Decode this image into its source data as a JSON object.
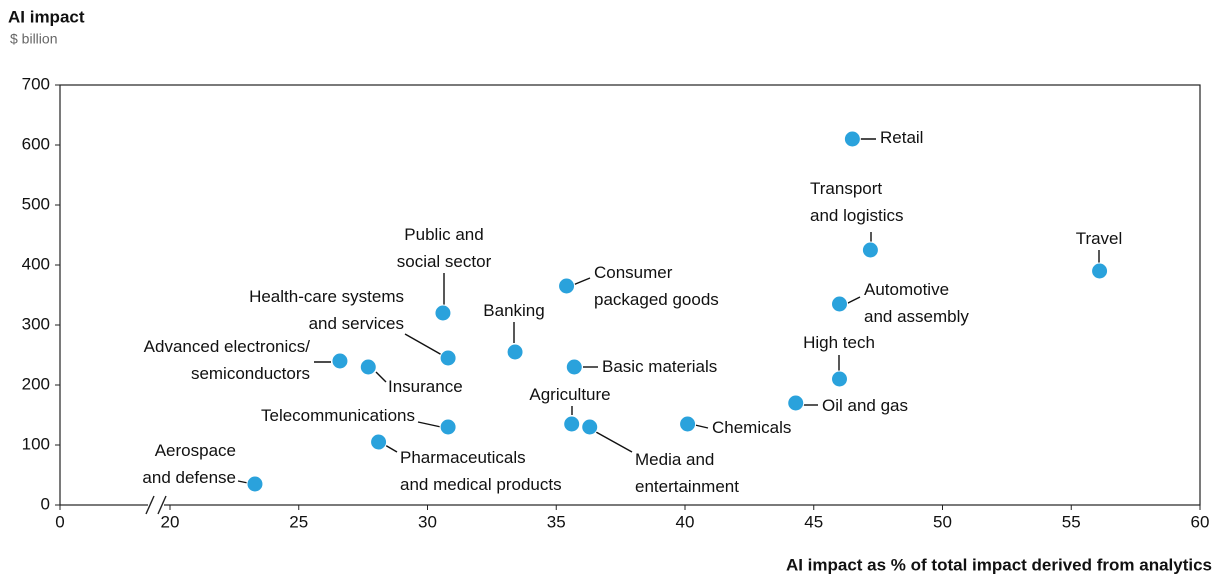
{
  "chart_data": {
    "type": "scatter",
    "title": "AI impact",
    "subtitle": "$ billion",
    "x_label": "AI impact as % of total impact derived from analytics",
    "color": "#2aa2dc",
    "x": [
      46.5,
      47.2,
      56.1,
      46.0,
      46.0,
      44.3,
      40.1,
      35.4,
      35.7,
      33.4,
      35.6,
      36.3,
      30.6,
      30.8,
      30.8,
      26.6,
      27.7,
      28.1,
      23.3
    ],
    "values": [
      610,
      425,
      390,
      335,
      210,
      170,
      135,
      365,
      230,
      255,
      135,
      130,
      320,
      245,
      130,
      240,
      230,
      105,
      35
    ],
    "labels": [
      [
        "Retail"
      ],
      [
        "Transport",
        "and logistics"
      ],
      [
        "Travel"
      ],
      [
        "Automotive",
        "and assembly"
      ],
      [
        "High tech"
      ],
      [
        "Oil and gas"
      ],
      [
        "Chemicals"
      ],
      [
        "Consumer",
        "packaged goods"
      ],
      [
        "Basic materials"
      ],
      [
        "Banking"
      ],
      [
        "Agriculture"
      ],
      [
        "Media and",
        "entertainment"
      ],
      [
        "Public and",
        "social sector"
      ],
      [
        "Health-care systems",
        "and services"
      ],
      [
        "Telecommunications"
      ],
      [
        "Advanced electronics/",
        "semiconductors"
      ],
      [
        "Insurance"
      ],
      [
        "Pharmaceuticals",
        "and medical products"
      ],
      [
        "Aerospace",
        "and defense"
      ]
    ],
    "xlim": [
      0,
      60
    ],
    "x_break": [
      0,
      20
    ],
    "xticks": [
      0,
      20,
      25,
      30,
      35,
      40,
      45,
      50,
      55,
      60
    ],
    "ylim": [
      0,
      700
    ],
    "yticks": [
      0,
      100,
      200,
      300,
      400,
      500,
      600,
      700
    ]
  }
}
